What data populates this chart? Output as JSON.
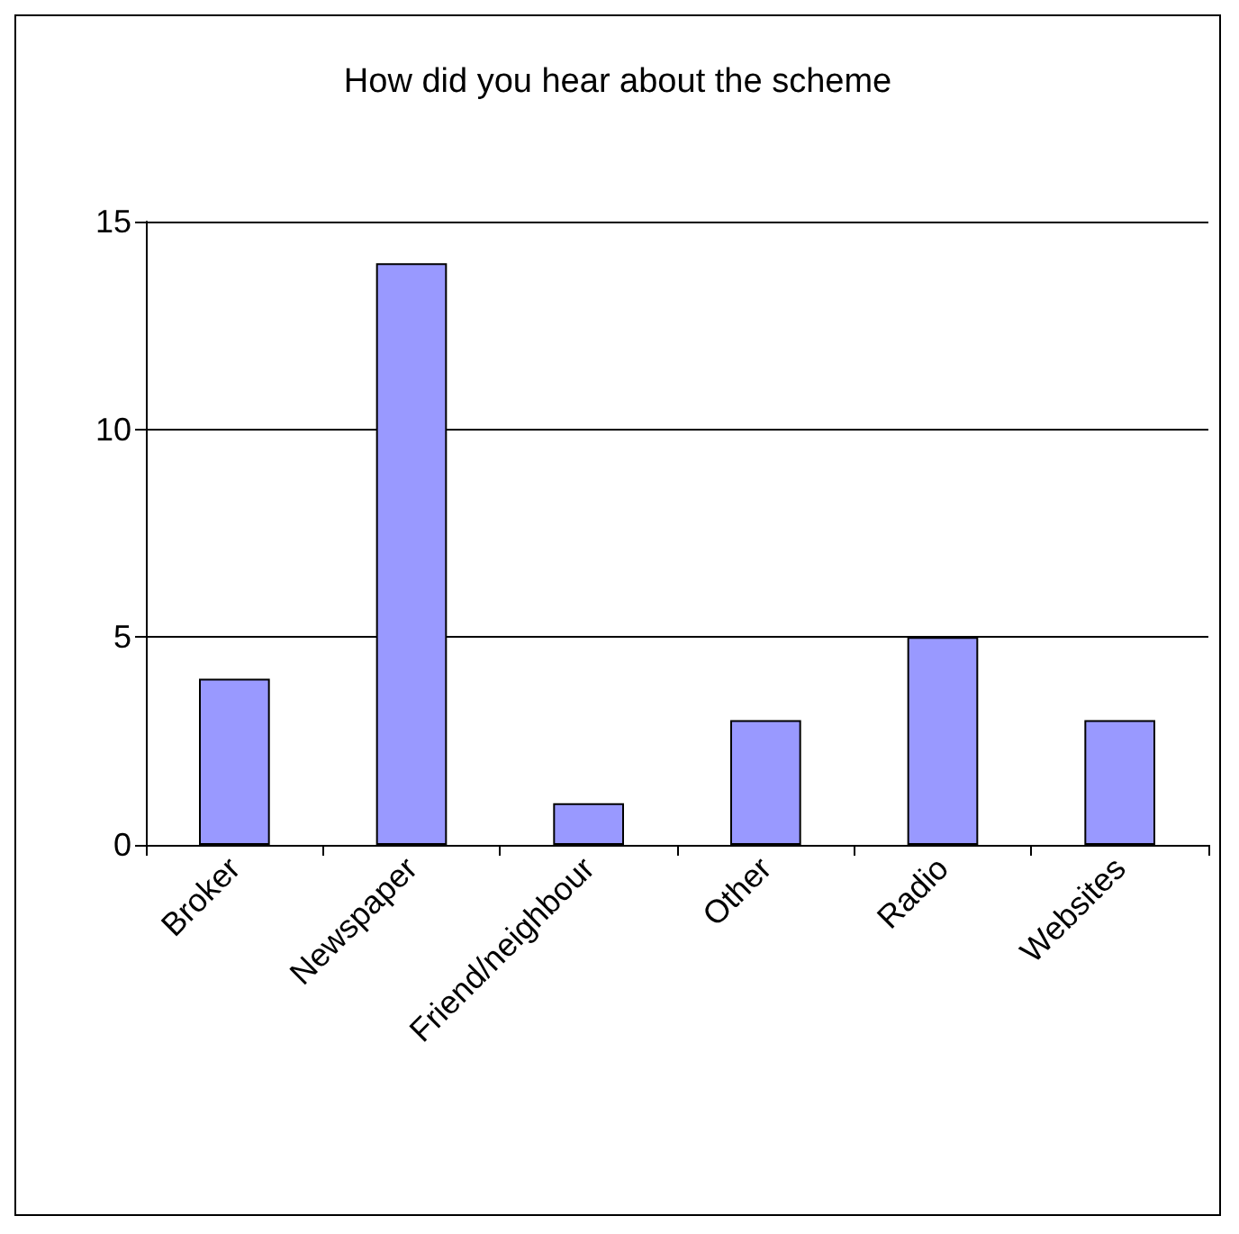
{
  "chart_data": {
    "type": "bar",
    "title": "How did you hear about the scheme",
    "categories": [
      "Broker",
      "Newspaper",
      "Friend/neighbour",
      "Other",
      "Radio",
      "Websites"
    ],
    "values": [
      4,
      14,
      1,
      3,
      5,
      3
    ],
    "color": "#9999ff",
    "ylim": [
      0,
      15
    ],
    "yticks": [
      0,
      5,
      10,
      15
    ],
    "grid": "y"
  }
}
